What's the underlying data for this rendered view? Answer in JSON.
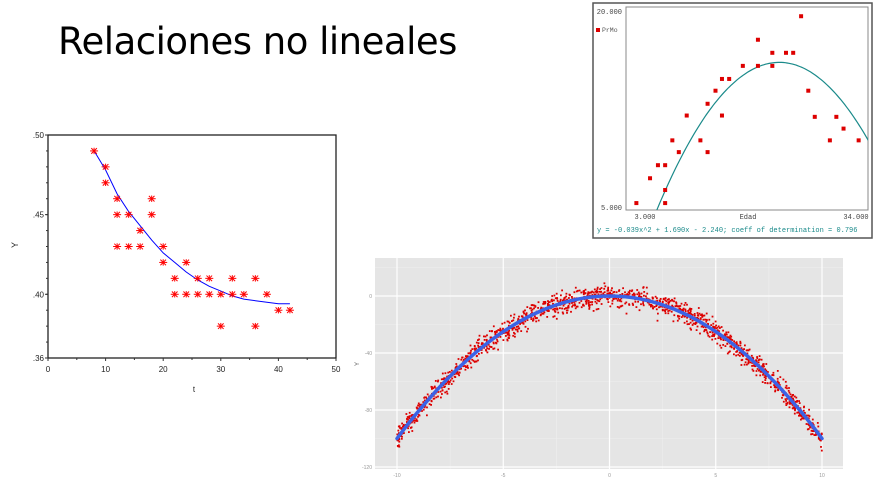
{
  "slide": {
    "title": "Relaciones no lineales"
  },
  "chart_data": [
    {
      "id": "left-decay",
      "type": "scatter",
      "title": "",
      "xlabel": "t",
      "ylabel": "Y",
      "xlim": [
        0,
        50
      ],
      "ylim": [
        0.36,
        0.5
      ],
      "x_ticks": [
        0,
        10,
        20,
        30,
        40,
        50
      ],
      "y_ticks": [
        ".36",
        ".40",
        ".45",
        ".50"
      ],
      "y_tick_values": [
        0.36,
        0.4,
        0.45,
        0.5
      ],
      "marker": "asterisk",
      "marker_color": "#ff0000",
      "line_color": "#0000ff",
      "grid": false,
      "points": [
        [
          8,
          0.49
        ],
        [
          10,
          0.48
        ],
        [
          10,
          0.47
        ],
        [
          12,
          0.46
        ],
        [
          12,
          0.45
        ],
        [
          14,
          0.45
        ],
        [
          18,
          0.46
        ],
        [
          18,
          0.45
        ],
        [
          16,
          0.44
        ],
        [
          12,
          0.43
        ],
        [
          14,
          0.43
        ],
        [
          16,
          0.43
        ],
        [
          20,
          0.43
        ],
        [
          20,
          0.42
        ],
        [
          24,
          0.42
        ],
        [
          22,
          0.41
        ],
        [
          26,
          0.41
        ],
        [
          28,
          0.41
        ],
        [
          32,
          0.41
        ],
        [
          36,
          0.41
        ],
        [
          22,
          0.4
        ],
        [
          24,
          0.4
        ],
        [
          26,
          0.4
        ],
        [
          28,
          0.4
        ],
        [
          30,
          0.4
        ],
        [
          32,
          0.4
        ],
        [
          34,
          0.4
        ],
        [
          38,
          0.4
        ],
        [
          40,
          0.39
        ],
        [
          42,
          0.39
        ],
        [
          30,
          0.38
        ],
        [
          36,
          0.38
        ]
      ],
      "fit_curve": [
        [
          8,
          0.49
        ],
        [
          10,
          0.478
        ],
        [
          12,
          0.463
        ],
        [
          14,
          0.452
        ],
        [
          16,
          0.443
        ],
        [
          18,
          0.434
        ],
        [
          20,
          0.426
        ],
        [
          22,
          0.42
        ],
        [
          24,
          0.414
        ],
        [
          26,
          0.409
        ],
        [
          28,
          0.405
        ],
        [
          30,
          0.402
        ],
        [
          32,
          0.399
        ],
        [
          34,
          0.397
        ],
        [
          36,
          0.396
        ],
        [
          38,
          0.395
        ],
        [
          40,
          0.394
        ],
        [
          42,
          0.394
        ]
      ]
    },
    {
      "id": "top-right-quadratic",
      "type": "scatter",
      "title": "",
      "legend": [
        "PrMo"
      ],
      "xlabel": "Edad",
      "ylabel": "",
      "xlim": [
        3,
        34
      ],
      "ylim": [
        5,
        20
      ],
      "x_tick_labels": [
        "3.000",
        "34.000"
      ],
      "y_tick_labels": [
        "5.000",
        "20.000"
      ],
      "marker": "square",
      "marker_color": "#dd0000",
      "line_color": "#1a8a8a",
      "equation": "y = -0.039x^2 + 1.690x - 2.240; coeff of determination = 0.796",
      "fit": {
        "a": -0.039,
        "b": 1.69,
        "c": -2.24,
        "r2": 0.796
      },
      "points": [
        [
          1.8,
          5.3
        ],
        [
          3.7,
          7.2
        ],
        [
          4.8,
          8.2
        ],
        [
          5.8,
          8.2
        ],
        [
          5.8,
          6.3
        ],
        [
          5.8,
          5.3
        ],
        [
          6.8,
          10.1
        ],
        [
          7.7,
          9.2
        ],
        [
          8.8,
          12.0
        ],
        [
          10.7,
          10.1
        ],
        [
          11.7,
          9.2
        ],
        [
          11.7,
          12.9
        ],
        [
          12.8,
          13.9
        ],
        [
          13.7,
          14.8
        ],
        [
          13.7,
          12.0
        ],
        [
          14.7,
          14.8
        ],
        [
          16.6,
          15.8
        ],
        [
          18.7,
          15.8
        ],
        [
          18.7,
          17.8
        ],
        [
          20.7,
          16.8
        ],
        [
          20.7,
          15.8
        ],
        [
          22.6,
          16.8
        ],
        [
          23.6,
          16.8
        ],
        [
          24.7,
          19.6
        ],
        [
          25.7,
          13.9
        ],
        [
          26.6,
          11.9
        ],
        [
          28.7,
          10.1
        ],
        [
          29.6,
          11.9
        ],
        [
          30.6,
          11.0
        ],
        [
          32.7,
          10.1
        ]
      ]
    },
    {
      "id": "bottom-parabola",
      "type": "scatter",
      "title": "",
      "xlabel": "",
      "ylabel": "Y",
      "xlim": [
        -11,
        11
      ],
      "ylim": [
        -122,
        18
      ],
      "x_tick_labels": [
        "-10",
        "-5",
        "0",
        "5",
        "10"
      ],
      "x_tick_values": [
        -10,
        -5,
        0,
        5,
        10
      ],
      "y_tick_labels": [
        "0",
        "-40",
        "-80",
        "-120"
      ],
      "y_tick_values": [
        0,
        -40,
        -80,
        -120
      ],
      "marker": "dot",
      "marker_color": "#dd0000",
      "line_color": "#3b63e6",
      "panel_background": "#e5e5e5",
      "grid": true,
      "n_points": 1500,
      "fit": {
        "formula": "y = -x^2",
        "a": -1,
        "b": 0,
        "c": 0
      },
      "noise_sd": 6
    }
  ]
}
